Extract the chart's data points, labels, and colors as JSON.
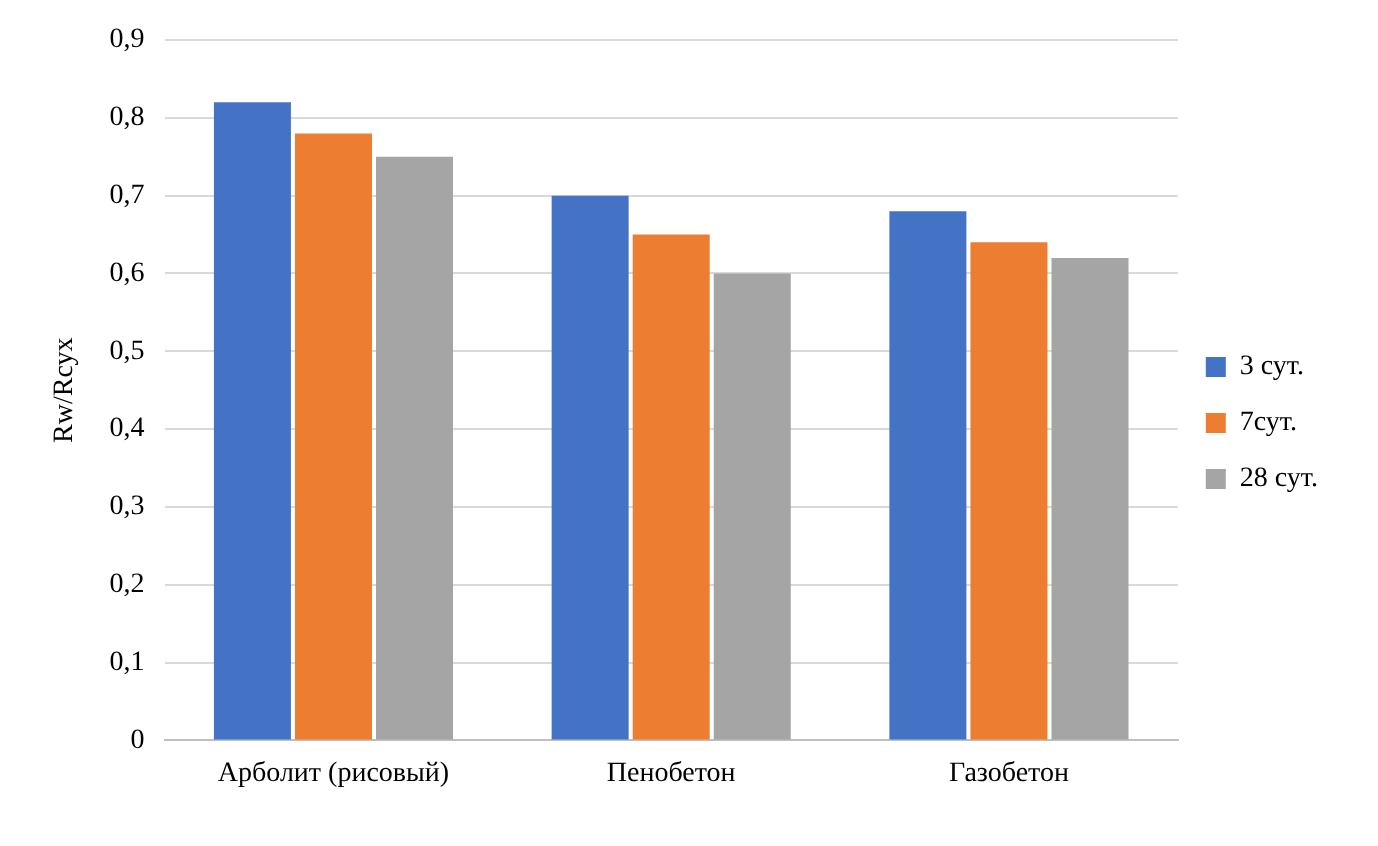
{
  "chart_data": {
    "type": "bar",
    "ylabel": "Rw/Rсух",
    "categories": [
      "Арболит (рисовый)",
      "Пенобетон",
      "Газобетон"
    ],
    "series": [
      {
        "name": "3 сут.",
        "color": "#4472c4",
        "values": [
          0.82,
          0.7,
          0.68
        ]
      },
      {
        "name": "7сут.",
        "color": "#ed7d31",
        "values": [
          0.78,
          0.65,
          0.64
        ]
      },
      {
        "name": "28 сут.",
        "color": "#a5a5a5",
        "values": [
          0.75,
          0.6,
          0.62
        ]
      }
    ],
    "ylim": [
      0,
      0.9
    ],
    "yticks": [
      {
        "value": 0,
        "label": "0"
      },
      {
        "value": 0.1,
        "label": "0,1"
      },
      {
        "value": 0.2,
        "label": "0,2"
      },
      {
        "value": 0.3,
        "label": "0,3"
      },
      {
        "value": 0.4,
        "label": "0,4"
      },
      {
        "value": 0.5,
        "label": "0,5"
      },
      {
        "value": 0.6,
        "label": "0,6"
      },
      {
        "value": 0.7,
        "label": "0,7"
      },
      {
        "value": 0.8,
        "label": "0,8"
      },
      {
        "value": 0.9,
        "label": "0,9"
      }
    ],
    "grid": "y",
    "legend": "right"
  }
}
